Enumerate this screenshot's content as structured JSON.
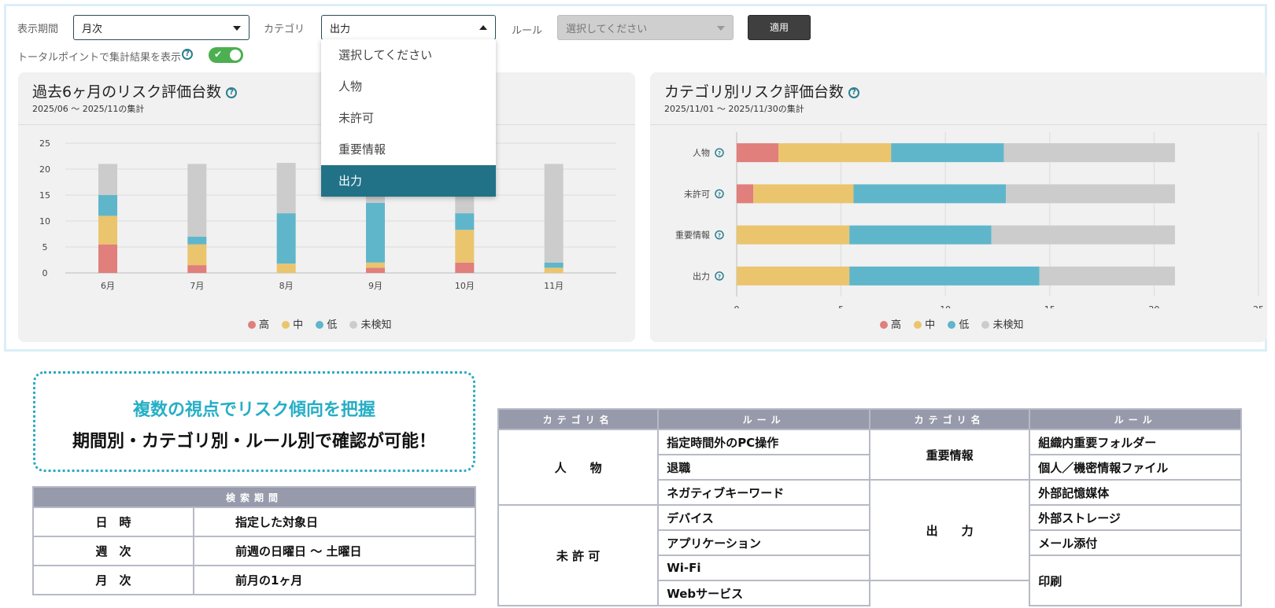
{
  "filters": {
    "period_label": "表示期間",
    "period_value": "月次",
    "category_label": "カテゴリ",
    "category_value": "出力",
    "rule_label": "ルール",
    "rule_placeholder": "選択してください",
    "apply_label": "適用",
    "total_points_label": "トータルポイントで集計結果を表示",
    "total_points_on": true
  },
  "dropdown": {
    "options": [
      "選択してください",
      "人物",
      "未許可",
      "重要情報",
      "出力"
    ],
    "selected": "出力"
  },
  "panel1": {
    "title": "過去6ヶ月のリスク評価台数",
    "subtitle": "2025/06 ～ 2025/11の集計"
  },
  "panel2": {
    "title": "カテゴリ別リスク評価台数",
    "subtitle": "2025/11/01 ～ 2025/11/30の集計"
  },
  "colors": {
    "high": "#e07f7b",
    "mid": "#ebc46e",
    "low": "#5fb6cb",
    "none": "#cccccc"
  },
  "legend": [
    "高",
    "中",
    "低",
    "未検知"
  ],
  "chart_data": [
    {
      "type": "bar",
      "stacked": true,
      "orientation": "vertical",
      "categories": [
        "6月",
        "7月",
        "8月",
        "9月",
        "10月",
        "11月"
      ],
      "series": [
        {
          "name": "高",
          "values": [
            5.5,
            1.5,
            0,
            1,
            2,
            0
          ]
        },
        {
          "name": "中",
          "values": [
            5.5,
            4,
            1.8,
            1,
            6.3,
            1
          ]
        },
        {
          "name": "低",
          "values": [
            4,
            1.5,
            9.7,
            11.5,
            3.2,
            1
          ]
        },
        {
          "name": "未検知",
          "values": [
            6,
            14,
            9.7,
            7.5,
            9.5,
            19
          ]
        }
      ],
      "ylim": [
        0,
        25
      ],
      "yticks": [
        0,
        5,
        10,
        15,
        20,
        25
      ],
      "grid": true,
      "legend_position": "bottom"
    },
    {
      "type": "bar",
      "stacked": true,
      "orientation": "horizontal",
      "categories": [
        "人物",
        "未許可",
        "重要情報",
        "出力"
      ],
      "series": [
        {
          "name": "高",
          "values": [
            2,
            0.8,
            0,
            0
          ]
        },
        {
          "name": "中",
          "values": [
            5.4,
            4.8,
            5.4,
            5.4
          ]
        },
        {
          "name": "低",
          "values": [
            5.4,
            7.3,
            6.8,
            9.1
          ]
        },
        {
          "name": "未検知",
          "values": [
            8.2,
            8.1,
            8.8,
            6.5
          ]
        }
      ],
      "xlim": [
        0,
        25
      ],
      "xticks": [
        0,
        5,
        10,
        15,
        20,
        25
      ],
      "grid": true,
      "legend_position": "bottom"
    }
  ],
  "callout": {
    "line1": "複数の視点でリスク傾向を把握",
    "line2": "期間別・カテゴリ別・ルール別で確認が可能！"
  },
  "period_table": {
    "header": "検索期間",
    "rows": [
      {
        "k": "日　時",
        "v": "指定した対象日"
      },
      {
        "k": "週　次",
        "v": "前週の日曜日 ～ 土曜日"
      },
      {
        "k": "月　次",
        "v": "前月の1ヶ月"
      }
    ]
  },
  "rule_table": {
    "h_cat": "カテゴリ名",
    "h_rule": "ルール",
    "left": [
      {
        "cat": "人　　物",
        "rules": [
          "指定時間外のPC操作",
          "退職",
          "ネガティブキーワード"
        ]
      },
      {
        "cat": "未 許 可",
        "rules": [
          "デバイス",
          "アプリケーション",
          "Wi-Fi",
          "Webサービス"
        ]
      }
    ],
    "right": [
      {
        "cat": "重要情報",
        "rules": [
          "組織内重要フォルダー",
          "個人／機密情報ファイル"
        ]
      },
      {
        "cat": "出　　力",
        "rules": [
          "外部記憶媒体",
          "外部ストレージ",
          "メール添付",
          "印刷"
        ]
      }
    ]
  }
}
